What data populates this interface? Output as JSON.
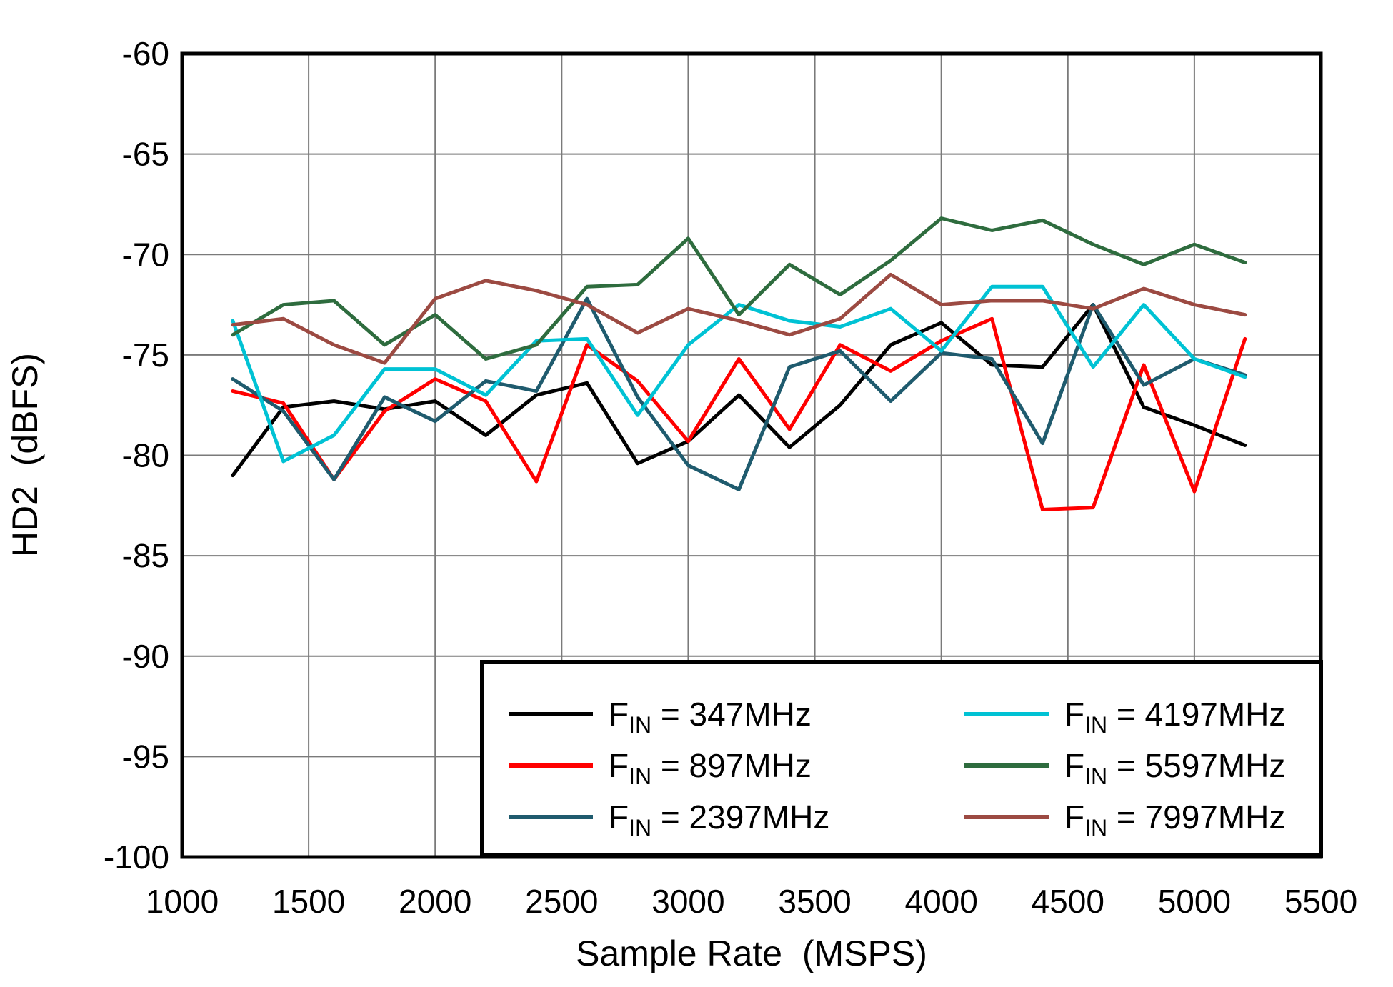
{
  "chart_data": {
    "type": "line",
    "title": "",
    "xlabel": "Sample Rate  (MSPS)",
    "ylabel": "HD2  (dBFS)",
    "xlim": [
      1000,
      5500
    ],
    "ylim": [
      -100,
      -60
    ],
    "xticks": [
      1000,
      1500,
      2000,
      2500,
      3000,
      3500,
      4000,
      4500,
      5000,
      5500
    ],
    "yticks": [
      -100,
      -95,
      -90,
      -85,
      -80,
      -75,
      -70,
      -65,
      -60
    ],
    "grid": true,
    "grid_color": "#7a7a7a",
    "legend_position": "lower right",
    "x": [
      1200,
      1400,
      1600,
      1800,
      2000,
      2200,
      2400,
      2600,
      2800,
      3000,
      3200,
      3400,
      3600,
      3800,
      4000,
      4200,
      4400,
      4600,
      4800,
      5000,
      5200
    ],
    "series": [
      {
        "name": "FIN = 347MHz",
        "label_prefix": "F",
        "label_sub": "IN",
        "label_rest": " = 347MHz",
        "color": "#000000",
        "values": [
          -81.0,
          -77.6,
          -77.3,
          -77.7,
          -77.3,
          -79.0,
          -77.0,
          -76.4,
          -80.4,
          -79.3,
          -77.0,
          -79.6,
          -77.5,
          -74.5,
          -73.4,
          -75.5,
          -75.6,
          -72.5,
          -77.6,
          -78.5,
          -79.5
        ]
      },
      {
        "name": "FIN = 897MHz",
        "label_prefix": "F",
        "label_sub": "IN",
        "label_rest": " = 897MHz",
        "color": "#ff0000",
        "values": [
          -76.8,
          -77.4,
          -81.2,
          -77.8,
          -76.2,
          -77.3,
          -81.3,
          -74.5,
          -76.3,
          -79.3,
          -75.2,
          -78.7,
          -74.5,
          -75.8,
          -74.3,
          -73.2,
          -82.7,
          -82.6,
          -75.5,
          -81.8,
          -74.2
        ]
      },
      {
        "name": "FIN = 2397MHz",
        "label_prefix": "F",
        "label_sub": "IN",
        "label_rest": " = 2397MHz",
        "color": "#1f5b6e",
        "values": [
          -76.2,
          -77.8,
          -81.2,
          -77.1,
          -78.3,
          -76.3,
          -76.8,
          -72.2,
          -77.1,
          -80.5,
          -81.7,
          -75.6,
          -74.8,
          -77.3,
          -74.9,
          -75.2,
          -79.4,
          -72.5,
          -76.5,
          -75.2,
          -76.0
        ]
      },
      {
        "name": "FIN = 4197MHz",
        "label_prefix": "F",
        "label_sub": "IN",
        "label_rest": " = 4197MHz",
        "color": "#00c2d4",
        "values": [
          -73.3,
          -80.3,
          -79.0,
          -75.7,
          -75.7,
          -77.0,
          -74.3,
          -74.2,
          -78.0,
          -74.5,
          -72.5,
          -73.3,
          -73.6,
          -72.7,
          -74.8,
          -71.6,
          -71.6,
          -75.6,
          -72.5,
          -75.2,
          -76.1
        ]
      },
      {
        "name": "FIN = 5597MHz",
        "label_prefix": "F",
        "label_sub": "IN",
        "label_rest": " = 5597MHz",
        "color": "#2e6c3e",
        "values": [
          -74.0,
          -72.5,
          -72.3,
          -74.5,
          -73.0,
          -75.2,
          -74.5,
          -71.6,
          -71.5,
          -69.2,
          -73.0,
          -70.5,
          -72.0,
          -70.3,
          -68.2,
          -68.8,
          -68.3,
          -69.5,
          -70.5,
          -69.5,
          -70.4
        ]
      },
      {
        "name": "FIN = 7997MHz",
        "label_prefix": "F",
        "label_sub": "IN",
        "label_rest": " = 7997MHz",
        "color": "#9c4a42",
        "values": [
          -73.5,
          -73.2,
          -74.5,
          -75.4,
          -72.2,
          -71.3,
          -71.8,
          -72.5,
          -73.9,
          -72.7,
          -73.3,
          -74.0,
          -73.2,
          -71.0,
          -72.5,
          -72.3,
          -72.3,
          -72.7,
          -71.7,
          -72.5,
          -73.0
        ]
      }
    ]
  }
}
